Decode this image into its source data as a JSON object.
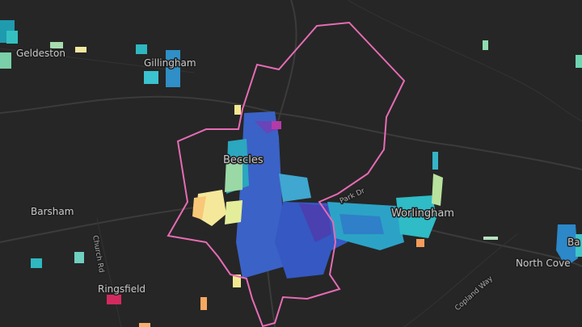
{
  "labels": {
    "geldeston": "Geldeston",
    "gillingham": "Gillingham",
    "beccles": "Beccles",
    "barsham": "Barsham",
    "church_rd": "Church Rd",
    "ringsfield": "Ringsfield",
    "park_dr": "Park Dr",
    "worlingham": "Worlingham",
    "north_cove": "North Cove",
    "copland_way": "Copland Way",
    "edge_label": "Ba"
  }
}
